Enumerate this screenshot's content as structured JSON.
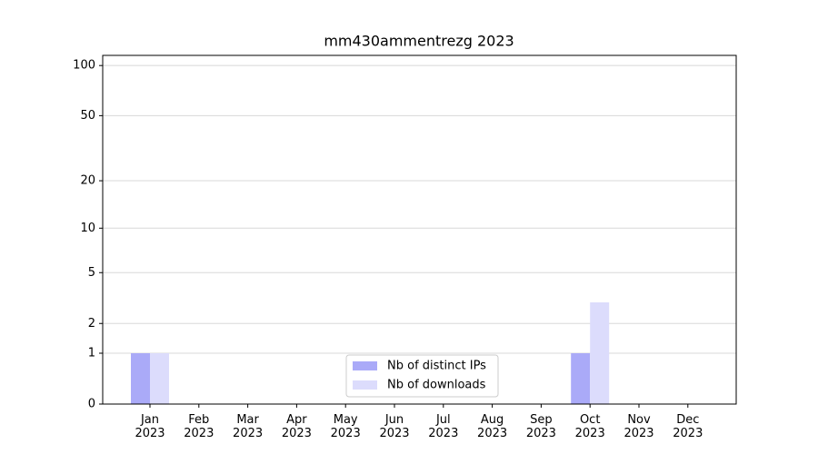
{
  "chart_data": {
    "type": "bar",
    "title": "mm430ammentrezg 2023",
    "categories": [
      "Jan\n2023",
      "Feb\n2023",
      "Mar\n2023",
      "Apr\n2023",
      "May\n2023",
      "Jun\n2023",
      "Jul\n2023",
      "Aug\n2023",
      "Sep\n2023",
      "Oct\n2023",
      "Nov\n2023",
      "Dec\n2023"
    ],
    "series": [
      {
        "name": "Nb of distinct IPs",
        "color": "#aaaaf8",
        "values": [
          1,
          0,
          0,
          0,
          0,
          0,
          0,
          0,
          0,
          1,
          0,
          0
        ]
      },
      {
        "name": "Nb of downloads",
        "color": "#dcdcfc",
        "values": [
          1,
          0,
          0,
          0,
          0,
          0,
          0,
          0,
          0,
          3,
          0,
          0
        ]
      }
    ],
    "yscale": "log1p",
    "ylim": [
      0,
      115
    ],
    "yticks": [
      0,
      1,
      2,
      5,
      10,
      20,
      50,
      100
    ],
    "grid": true,
    "legend": "lower center"
  }
}
